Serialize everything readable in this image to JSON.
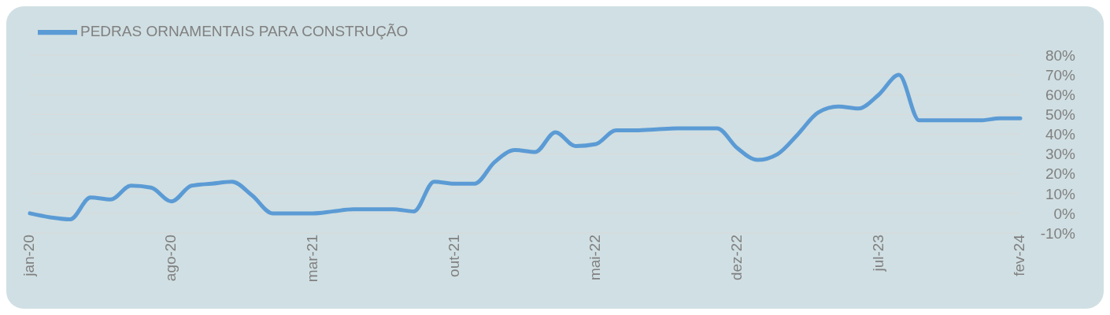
{
  "chart_data": {
    "type": "line",
    "categories": [
      "jan-20",
      null,
      null,
      null,
      null,
      null,
      null,
      "ago-20",
      null,
      null,
      null,
      null,
      null,
      null,
      "mar-21",
      null,
      null,
      null,
      null,
      null,
      null,
      "out-21",
      null,
      null,
      null,
      null,
      null,
      null,
      "mai-22",
      null,
      null,
      null,
      null,
      null,
      null,
      "dez-22",
      null,
      null,
      null,
      null,
      null,
      null,
      "jul-23",
      null,
      null,
      null,
      null,
      null,
      null,
      "fev-24"
    ],
    "series": [
      {
        "name": "PEDRAS ORNAMENTAIS PARA CONSTRUÇÃO",
        "color": "#5b9bd5",
        "values": [
          0,
          -2,
          -3,
          8,
          7,
          14,
          13,
          6,
          14,
          15,
          16,
          9,
          0,
          0,
          0,
          1,
          2,
          2,
          2,
          1,
          16,
          15,
          15,
          26,
          32,
          31,
          41,
          34,
          35,
          42,
          42,
          42.5,
          43,
          43,
          43,
          33,
          27,
          30,
          40,
          51,
          54,
          53,
          60,
          70,
          47,
          47,
          47,
          47,
          48,
          48
        ]
      }
    ],
    "ylim": [
      -10,
      80
    ],
    "yticks": [
      {
        "value": -10,
        "label": "-10%"
      },
      {
        "value": 0,
        "label": "0%"
      },
      {
        "value": 10,
        "label": "10%"
      },
      {
        "value": 20,
        "label": "20%"
      },
      {
        "value": 30,
        "label": "30%"
      },
      {
        "value": 40,
        "label": "40%"
      },
      {
        "value": 50,
        "label": "50%"
      },
      {
        "value": 60,
        "label": "60%"
      },
      {
        "value": 70,
        "label": "70%"
      },
      {
        "value": 80,
        "label": "80%"
      }
    ],
    "grid": "y",
    "legend": "top left",
    "marker": "none",
    "line_style": "solid"
  }
}
